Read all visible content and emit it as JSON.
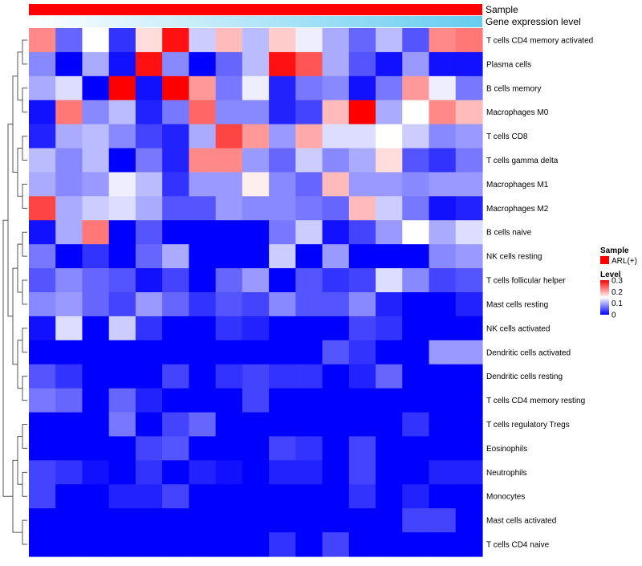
{
  "chart_data": {
    "type": "heatmap",
    "title": "",
    "annotations": [
      {
        "label": "Sample",
        "style": "solid",
        "color": "#ff0000"
      },
      {
        "label": "Gene expression level",
        "style": "gradient",
        "colors": [
          "#ffffff",
          "#66ccf0"
        ]
      }
    ],
    "rows": [
      "T cells CD4 memory activated",
      "Plasma cells",
      "B cells memory",
      "Macrophages M0",
      "T cells CD8",
      "T cells gamma delta",
      "Macrophages M1",
      "Macrophages M2",
      "B cells naive",
      "NK cells resting",
      "T cells follicular helper",
      "Mast cells resting",
      "NK cells activated",
      "Dendritic cells activated",
      "Dendritic cells resting",
      "T cells CD4 memory resting",
      "T cells regulatory  Tregs",
      "Eosinophils",
      "Neutrophils",
      "Monocytes",
      "Mast cells activated",
      "T cells CD4 naive"
    ],
    "n_columns": 17,
    "values": [
      [
        0.22,
        0.06,
        0.15,
        0.03,
        0.17,
        0.29,
        0.12,
        0.19,
        0.11,
        0.18,
        0.14,
        0.1,
        0.06,
        0.11,
        0.05,
        0.22,
        0.23
      ],
      [
        0.08,
        0.0,
        0.1,
        0.01,
        0.29,
        0.08,
        0.0,
        0.06,
        0.11,
        0.29,
        0.25,
        0.1,
        0.05,
        0.01,
        0.09,
        0.01,
        0.01
      ],
      [
        0.1,
        0.13,
        0.0,
        0.3,
        0.01,
        0.3,
        0.21,
        0.07,
        0.14,
        0.02,
        0.07,
        0.08,
        0.01,
        0.07,
        0.21,
        0.14,
        0.07
      ],
      [
        0.01,
        0.23,
        0.08,
        0.11,
        0.02,
        0.07,
        0.24,
        0.08,
        0.08,
        0.02,
        0.04,
        0.19,
        0.3,
        0.1,
        0.15,
        0.22,
        0.19
      ],
      [
        0.02,
        0.1,
        0.11,
        0.08,
        0.04,
        0.02,
        0.1,
        0.26,
        0.21,
        0.09,
        0.2,
        0.13,
        0.13,
        0.15,
        0.12,
        0.08,
        0.09
      ],
      [
        0.11,
        0.08,
        0.11,
        0.0,
        0.07,
        0.02,
        0.22,
        0.22,
        0.09,
        0.06,
        0.12,
        0.08,
        0.1,
        0.17,
        0.05,
        0.03,
        0.07
      ],
      [
        0.1,
        0.08,
        0.09,
        0.14,
        0.11,
        0.03,
        0.09,
        0.09,
        0.16,
        0.08,
        0.06,
        0.19,
        0.09,
        0.09,
        0.08,
        0.09,
        0.09
      ],
      [
        0.26,
        0.1,
        0.12,
        0.13,
        0.1,
        0.05,
        0.05,
        0.09,
        0.08,
        0.08,
        0.07,
        0.06,
        0.19,
        0.12,
        0.07,
        0.01,
        0.02
      ],
      [
        0.01,
        0.1,
        0.23,
        0.0,
        0.05,
        0.0,
        0.0,
        0.0,
        0.0,
        0.07,
        0.12,
        0.01,
        0.04,
        0.09,
        0.15,
        0.1,
        0.13
      ],
      [
        0.07,
        0.0,
        0.03,
        0.0,
        0.06,
        0.1,
        0.0,
        0.0,
        0.0,
        0.12,
        0.0,
        0.09,
        0.0,
        0.0,
        0.0,
        0.08,
        0.09
      ],
      [
        0.05,
        0.08,
        0.06,
        0.05,
        0.01,
        0.04,
        0.0,
        0.06,
        0.09,
        0.0,
        0.05,
        0.03,
        0.04,
        0.13,
        0.08,
        0.04,
        0.05
      ],
      [
        0.08,
        0.09,
        0.06,
        0.04,
        0.09,
        0.06,
        0.03,
        0.05,
        0.04,
        0.08,
        0.05,
        0.05,
        0.08,
        0.02,
        0.0,
        0.0,
        0.02
      ],
      [
        0.01,
        0.13,
        0.0,
        0.12,
        0.03,
        0.0,
        0.0,
        0.03,
        0.02,
        0.0,
        0.0,
        0.0,
        0.04,
        0.03,
        0.0,
        0.0,
        0.0
      ],
      [
        0.0,
        0.0,
        0.0,
        0.0,
        0.0,
        0.0,
        0.0,
        0.0,
        0.0,
        0.0,
        0.0,
        0.05,
        0.03,
        0.0,
        0.0,
        0.09,
        0.09
      ],
      [
        0.05,
        0.03,
        0.0,
        0.0,
        0.0,
        0.04,
        0.0,
        0.03,
        0.04,
        0.03,
        0.03,
        0.0,
        0.02,
        0.06,
        0.0,
        0.0,
        0.0
      ],
      [
        0.07,
        0.06,
        0.0,
        0.06,
        0.02,
        0.0,
        0.0,
        0.0,
        0.04,
        0.0,
        0.0,
        0.0,
        0.0,
        0.0,
        0.0,
        0.0,
        0.0
      ],
      [
        0.0,
        0.0,
        0.0,
        0.07,
        0.0,
        0.04,
        0.06,
        0.0,
        0.0,
        0.0,
        0.0,
        0.0,
        0.0,
        0.0,
        0.03,
        0.0,
        0.0
      ],
      [
        0.0,
        0.0,
        0.0,
        0.0,
        0.04,
        0.05,
        0.0,
        0.0,
        0.0,
        0.04,
        0.03,
        0.0,
        0.04,
        0.0,
        0.0,
        0.0,
        0.0
      ],
      [
        0.04,
        0.03,
        0.01,
        0.0,
        0.03,
        0.0,
        0.02,
        0.01,
        0.0,
        0.02,
        0.02,
        0.0,
        0.04,
        0.0,
        0.0,
        0.02,
        0.02
      ],
      [
        0.04,
        0.0,
        0.0,
        0.02,
        0.02,
        0.04,
        0.0,
        0.0,
        0.0,
        0.0,
        0.0,
        0.0,
        0.03,
        0.0,
        0.02,
        0.0,
        0.0
      ],
      [
        0.0,
        0.0,
        0.0,
        0.0,
        0.0,
        0.0,
        0.0,
        0.0,
        0.0,
        0.0,
        0.0,
        0.0,
        0.0,
        0.0,
        0.04,
        0.04,
        0.0
      ],
      [
        0.0,
        0.0,
        0.0,
        0.0,
        0.0,
        0.0,
        0.0,
        0.0,
        0.0,
        0.03,
        0.0,
        0.04,
        0.0,
        0.0,
        0.0,
        0.0,
        0.0
      ]
    ],
    "row_dendrogram": "tree",
    "legend": {
      "sample_title": "Sample",
      "sample_entry": "ARL(+)",
      "sample_color": "#ff0000",
      "level_title": "Level",
      "level_ticks": [
        "0.3",
        "0.2",
        "0.1",
        "0"
      ],
      "level_tick_values": [
        0.3,
        0.2,
        0.1,
        0.0
      ],
      "color_low": "#0000ff",
      "color_mid": "#ffffff",
      "color_high": "#ff0000",
      "range": [
        0,
        0.3
      ],
      "placement": "right"
    }
  }
}
